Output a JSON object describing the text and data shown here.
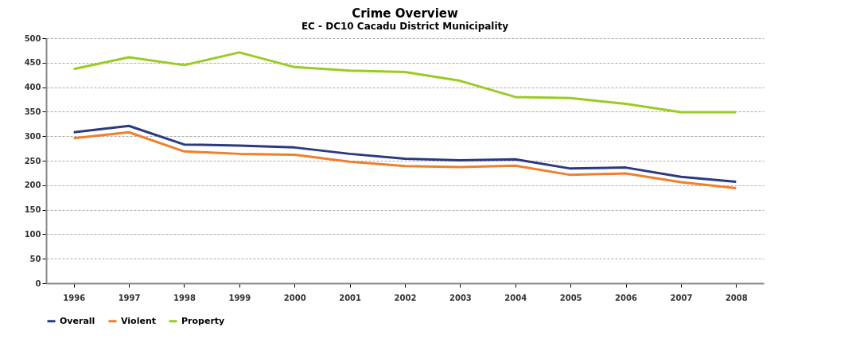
{
  "chart_data": {
    "type": "line",
    "title": "Crime Overview",
    "subtitle": "EC - DC10 Cacadu District Municipality",
    "categories": [
      "1996",
      "1997",
      "1998",
      "1999",
      "2000",
      "2001",
      "2002",
      "2003",
      "2004",
      "2005",
      "2006",
      "2007",
      "2008"
    ],
    "series": [
      {
        "name": "Overall",
        "color": "#2b3a80",
        "values": [
          308,
          321,
          283,
          281,
          277,
          264,
          254,
          251,
          253,
          234,
          236,
          217,
          207
        ]
      },
      {
        "name": "Violent",
        "color": "#f07f2c",
        "values": [
          296,
          308,
          269,
          264,
          262,
          248,
          239,
          237,
          240,
          221,
          224,
          206,
          194
        ]
      },
      {
        "name": "Property",
        "color": "#99cc22",
        "values": [
          437,
          461,
          445,
          471,
          441,
          434,
          431,
          413,
          380,
          378,
          366,
          349,
          349
        ]
      }
    ],
    "ylim": [
      0,
      500
    ],
    "yticks": [
      0,
      50,
      100,
      150,
      200,
      250,
      300,
      350,
      400,
      450,
      500
    ],
    "grid": "y",
    "legend": "bottom left",
    "marker": "none",
    "line_style": "solid"
  }
}
